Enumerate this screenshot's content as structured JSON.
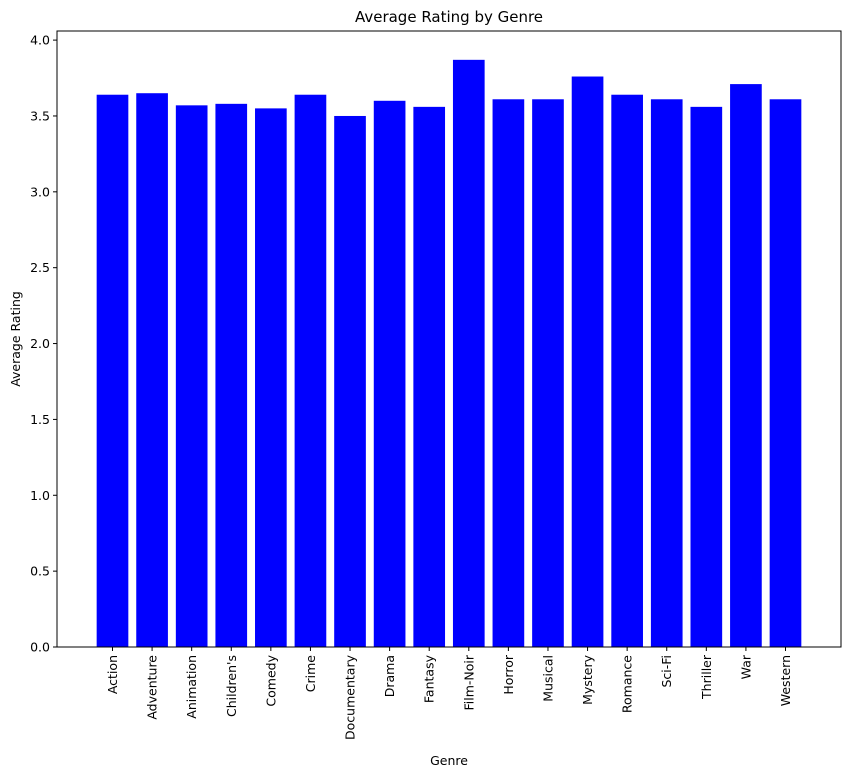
{
  "chart_data": {
    "type": "bar",
    "title": "Average Rating by Genre",
    "xlabel": "Genre",
    "ylabel": "Average Rating",
    "categories": [
      "Action",
      "Adventure",
      "Animation",
      "Children's",
      "Comedy",
      "Crime",
      "Documentary",
      "Drama",
      "Fantasy",
      "Film-Noir",
      "Horror",
      "Musical",
      "Mystery",
      "Romance",
      "Sci-Fi",
      "Thriller",
      "War",
      "Western"
    ],
    "values": [
      3.64,
      3.65,
      3.57,
      3.58,
      3.55,
      3.64,
      3.5,
      3.6,
      3.56,
      3.87,
      3.61,
      3.61,
      3.76,
      3.64,
      3.61,
      3.56,
      3.71,
      3.61
    ],
    "ylim": [
      0,
      4.06
    ],
    "yticks": [
      "0.0",
      "0.5",
      "1.0",
      "1.5",
      "2.0",
      "2.5",
      "3.0",
      "3.5",
      "4.0"
    ],
    "bar_color": "#0000ff",
    "grid": false,
    "legend": false
  }
}
